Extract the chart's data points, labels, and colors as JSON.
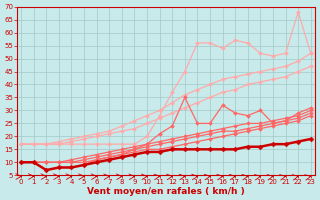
{
  "bg_color": "#c8eaea",
  "grid_color": "#a0c8c8",
  "x_values": [
    0,
    1,
    2,
    3,
    4,
    5,
    6,
    7,
    8,
    9,
    10,
    11,
    12,
    13,
    14,
    15,
    16,
    17,
    18,
    19,
    20,
    21,
    22,
    23
  ],
  "series": [
    {
      "color": "#ffaaaa",
      "lw": 0.9,
      "marker": "D",
      "ms": 2.0,
      "data": [
        17,
        17,
        17,
        17,
        17,
        17,
        17,
        17,
        17,
        17,
        20,
        28,
        37,
        45,
        56,
        56,
        54,
        57,
        56,
        52,
        51,
        52,
        68,
        52
      ]
    },
    {
      "color": "#ffaaaa",
      "lw": 0.9,
      "marker": "D",
      "ms": 2.0,
      "data": [
        17,
        17,
        17,
        18,
        19,
        20,
        21,
        22,
        24,
        26,
        28,
        30,
        33,
        36,
        38,
        40,
        42,
        43,
        44,
        45,
        46,
        47,
        49,
        52
      ]
    },
    {
      "color": "#ffaaaa",
      "lw": 0.9,
      "marker": "D",
      "ms": 2.0,
      "data": [
        17,
        17,
        17,
        17,
        18,
        19,
        20,
        21,
        22,
        23,
        25,
        27,
        29,
        31,
        33,
        35,
        37,
        38,
        40,
        41,
        42,
        43,
        45,
        47
      ]
    },
    {
      "color": "#ff6666",
      "lw": 0.9,
      "marker": "D",
      "ms": 2.0,
      "data": [
        10,
        10,
        7,
        8,
        8,
        9,
        11,
        12,
        13,
        15,
        17,
        21,
        24,
        35,
        25,
        25,
        32,
        29,
        28,
        30,
        25,
        26,
        29,
        31
      ]
    },
    {
      "color": "#ff6666",
      "lw": 0.9,
      "marker": "D",
      "ms": 2.0,
      "data": [
        10,
        10,
        10,
        10,
        11,
        12,
        13,
        14,
        15,
        16,
        17,
        18,
        19,
        20,
        21,
        22,
        23,
        24,
        25,
        25,
        26,
        27,
        28,
        30
      ]
    },
    {
      "color": "#ff6666",
      "lw": 0.9,
      "marker": "D",
      "ms": 2.0,
      "data": [
        10,
        10,
        10,
        10,
        10,
        11,
        12,
        13,
        14,
        15,
        16,
        17,
        18,
        19,
        20,
        21,
        22,
        22,
        23,
        24,
        25,
        26,
        27,
        29
      ]
    },
    {
      "color": "#ff6666",
      "lw": 0.9,
      "marker": "D",
      "ms": 2.0,
      "data": [
        10,
        10,
        10,
        10,
        10,
        10,
        11,
        12,
        13,
        14,
        15,
        15,
        16,
        17,
        18,
        19,
        20,
        21,
        22,
        23,
        24,
        25,
        26,
        28
      ]
    },
    {
      "color": "#cc0000",
      "lw": 1.8,
      "marker": "D",
      "ms": 2.5,
      "data": [
        10,
        10,
        7,
        8,
        8,
        9,
        10,
        11,
        12,
        13,
        14,
        14,
        15,
        15,
        15,
        15,
        15,
        15,
        16,
        16,
        17,
        17,
        18,
        19
      ]
    }
  ],
  "xlim": [
    -0.3,
    23.3
  ],
  "ylim": [
    5,
    70
  ],
  "yticks": [
    5,
    10,
    15,
    20,
    25,
    30,
    35,
    40,
    45,
    50,
    55,
    60,
    65,
    70
  ],
  "xticks": [
    0,
    1,
    2,
    3,
    4,
    5,
    6,
    7,
    8,
    9,
    10,
    11,
    12,
    13,
    14,
    15,
    16,
    17,
    18,
    19,
    20,
    21,
    22,
    23
  ],
  "xlabel": "Vent moyen/en rafales ( km/h )",
  "xlabel_color": "#cc0000",
  "xlabel_fontsize": 6.5,
  "tick_color": "#cc0000",
  "tick_fontsize": 5.0,
  "arrow_color": "#cc0000",
  "spine_color": "#cc0000"
}
